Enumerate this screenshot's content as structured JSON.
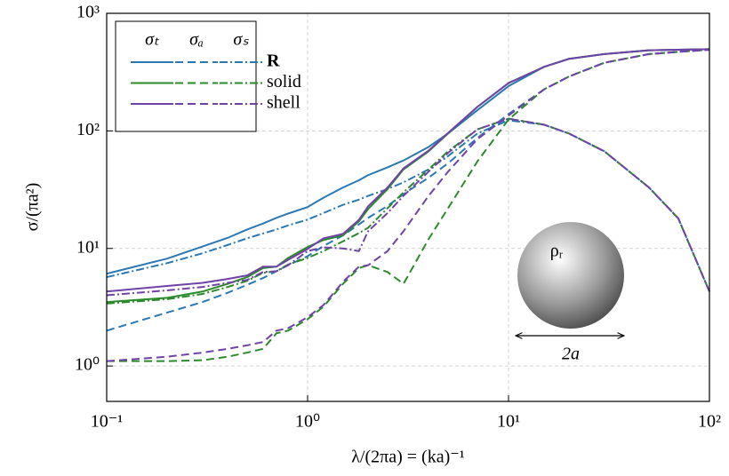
{
  "chart_data": {
    "type": "line",
    "xlabel": "λ/(2πa) = (ka)⁻¹",
    "ylabel": "σ/(πa²)",
    "xscale": "log",
    "yscale": "log",
    "grid": true,
    "legend": "upper left",
    "xlim": [
      0.1,
      100
    ],
    "ylim": [
      0.5,
      1000
    ],
    "xticks": [
      {
        "value": 0.1,
        "label": "10⁻¹"
      },
      {
        "value": 1,
        "label": "10⁰"
      },
      {
        "value": 10,
        "label": "10¹"
      },
      {
        "value": 100,
        "label": "10²"
      }
    ],
    "yticks": [
      {
        "value": 1,
        "label": "10⁰"
      },
      {
        "value": 10,
        "label": "10¹"
      },
      {
        "value": 100,
        "label": "10²"
      },
      {
        "value": 1000,
        "label": "10³"
      }
    ],
    "legend_columns": [
      "σₜ",
      "σₐ",
      "σₛ"
    ],
    "dashes": [
      "solid",
      "dashed",
      "dashdot"
    ],
    "annotations": {
      "density": "ρᵣ",
      "diameter": "2a"
    },
    "x": [
      0.1,
      0.2,
      0.3,
      0.4,
      0.5,
      0.6,
      0.7,
      0.8,
      1,
      1.2,
      1.5,
      1.8,
      2,
      2.5,
      3,
      4,
      5,
      7,
      10,
      15,
      20,
      30,
      50,
      70,
      100
    ],
    "series": [
      {
        "name": "R",
        "color": "#2a78b4",
        "lines": [
          {
            "values": [
              6.1,
              8.2,
              10.4,
              12.3,
              14.5,
              16.3,
              18.2,
              19.8,
              22.5,
              27,
              33,
              38,
              42,
              49,
              56,
              73,
              95,
              150,
              240,
              350,
              410,
              450,
              485,
              490,
              495
            ]
          },
          {
            "values": [
              2.0,
              2.85,
              3.5,
              4.2,
              4.9,
              5.6,
              6.4,
              7.2,
              8.6,
              10.5,
              12.9,
              16,
              18.2,
              23,
              29,
              40,
              53,
              87,
              139,
              225,
              290,
              380,
              450,
              470,
              490
            ]
          },
          {
            "values": [
              5.7,
              7.5,
              9.1,
              10.7,
              12.2,
              13.4,
              14.5,
              15.7,
              17.6,
              20,
              23.5,
              26,
              28,
              32,
              36.5,
              47,
              61,
              95,
              123,
              113,
              95,
              67,
              33,
              18,
              4.3
            ]
          }
        ]
      },
      {
        "name": "solid",
        "color": "#2b8a2b",
        "lines": [
          {
            "values": [
              3.5,
              3.8,
              4.3,
              5,
              5.7,
              6.8,
              7,
              8.3,
              10.3,
              11.8,
              12.9,
              17,
              21.6,
              32,
              47,
              67,
              95,
              160,
              255,
              350,
              410,
              450,
              485,
              490,
              495
            ]
          },
          {
            "values": [
              1.1,
              1.1,
              1.12,
              1.2,
              1.3,
              1.4,
              1.9,
              2.0,
              2.5,
              3.2,
              5,
              6.8,
              7.2,
              6.3,
              5.0,
              12,
              22,
              55,
              125,
              225,
              290,
              380,
              450,
              470,
              490
            ]
          },
          {
            "values": [
              3.4,
              3.7,
              4.1,
              4.7,
              5.3,
              6.2,
              6.4,
              7.3,
              8.3,
              9.5,
              11.5,
              13.5,
              15,
              22,
              30,
              47,
              67,
              103,
              127,
              113,
              95,
              67,
              33,
              18,
              4.3
            ]
          }
        ]
      },
      {
        "name": "shell",
        "color": "#7043a8",
        "lines": [
          {
            "values": [
              4.3,
              4.8,
              5.1,
              5.5,
              5.9,
              7,
              7,
              8,
              9.9,
              12.2,
              13.3,
              17.5,
              22.8,
              33,
              48,
              68,
              96,
              160,
              255,
              350,
              410,
              450,
              485,
              490,
              495
            ]
          },
          {
            "values": [
              1.1,
              1.2,
              1.3,
              1.4,
              1.5,
              1.6,
              2.0,
              2.1,
              2.6,
              3.3,
              5.2,
              7,
              7.2,
              9.5,
              14,
              28,
              45,
              85,
              135,
              225,
              290,
              380,
              450,
              470,
              490
            ]
          },
          {
            "values": [
              4.0,
              4.4,
              4.7,
              5.1,
              5.4,
              6.3,
              6.4,
              7.2,
              9.5,
              10.2,
              10,
              9.5,
              14,
              20,
              28,
              45,
              65,
              103,
              127,
              113,
              95,
              67,
              33,
              18,
              4.3
            ]
          }
        ]
      }
    ]
  }
}
